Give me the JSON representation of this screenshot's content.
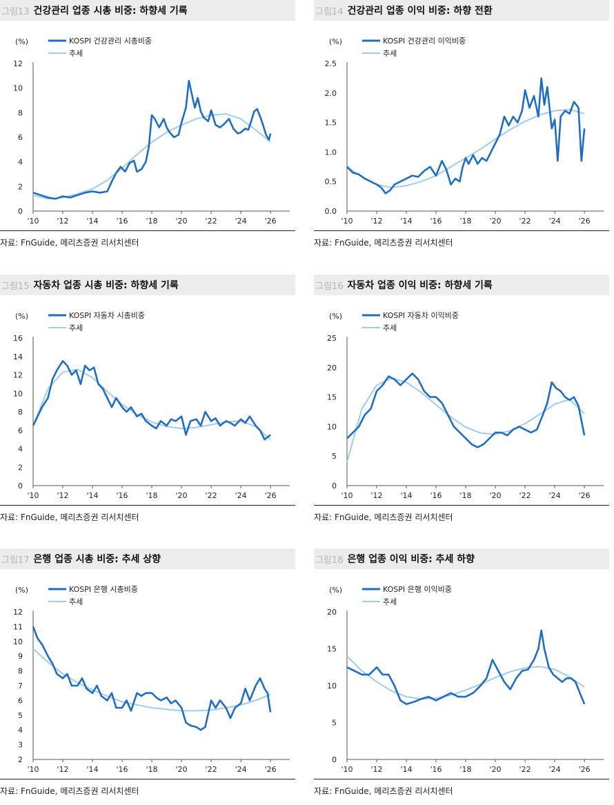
{
  "source_text": "자료: FnGuide, 메리츠증권 리서치센터",
  "colors": {
    "series": "#1f6dc0",
    "trend": "#9fcbef"
  },
  "chart_data": [
    {
      "type": "line",
      "fig_no": "그림13",
      "title": "건강관리 업종 시총 비중: 하향세 기록",
      "unit": "(%)",
      "ylim": [
        0,
        12
      ],
      "yticks": [
        "0",
        "2",
        "4",
        "6",
        "8",
        "10",
        "12"
      ],
      "xlim": [
        2010,
        2026.6
      ],
      "xticks": [
        "'10",
        "'12",
        "'14",
        "'16",
        "'18",
        "'20",
        "'22",
        "'24",
        "'26"
      ],
      "series": [
        {
          "name": "KOSPI 건강관리 시총비중",
          "role": "actual",
          "x": [
            2010,
            2010.5,
            2011,
            2011.5,
            2012,
            2012.5,
            2013,
            2013.5,
            2014,
            2014.5,
            2015,
            2015.3,
            2015.6,
            2015.9,
            2016.2,
            2016.5,
            2016.8,
            2017,
            2017.3,
            2017.6,
            2017.8,
            2018,
            2018.2,
            2018.5,
            2018.8,
            2019,
            2019.2,
            2019.5,
            2019.8,
            2020,
            2020.3,
            2020.5,
            2020.7,
            2020.9,
            2021.1,
            2021.3,
            2021.5,
            2021.8,
            2022,
            2022.3,
            2022.6,
            2022.9,
            2023.2,
            2023.5,
            2023.8,
            2024,
            2024.3,
            2024.5,
            2024.7,
            2024.9,
            2025.1,
            2025.3,
            2025.5,
            2025.7,
            2025.9,
            2026
          ],
          "y": [
            1.5,
            1.3,
            1.1,
            1.0,
            1.2,
            1.1,
            1.3,
            1.5,
            1.6,
            1.5,
            1.6,
            2.4,
            3.1,
            3.6,
            3.2,
            3.9,
            4.1,
            3.2,
            3.4,
            4.0,
            5.2,
            7.8,
            7.5,
            6.8,
            7.5,
            6.8,
            6.4,
            6.0,
            6.2,
            7.2,
            8.4,
            10.6,
            9.5,
            8.4,
            9.2,
            8.1,
            7.6,
            7.3,
            8.2,
            7.0,
            6.8,
            7.1,
            7.5,
            6.7,
            6.3,
            6.4,
            6.7,
            6.6,
            7.3,
            8.1,
            8.3,
            7.7,
            7.0,
            6.2,
            5.8,
            6.3
          ]
        },
        {
          "name": "추세",
          "role": "trend",
          "x": [
            2010,
            2011,
            2012,
            2013,
            2014,
            2015,
            2016,
            2017,
            2018,
            2019,
            2020,
            2021,
            2022,
            2023,
            2024,
            2025,
            2026
          ],
          "y": [
            1.3,
            1.0,
            1.1,
            1.4,
            1.8,
            2.5,
            3.5,
            4.6,
            5.6,
            6.4,
            7.0,
            7.5,
            7.8,
            7.9,
            7.5,
            6.6,
            5.6
          ]
        }
      ]
    },
    {
      "type": "line",
      "fig_no": "그림14",
      "title": "건강관리 업종 이익 비중: 하향 전환",
      "unit": "(%)",
      "ylim": [
        0,
        2.5
      ],
      "yticks": [
        "0.0",
        "0.5",
        "1.0",
        "1.5",
        "2.0",
        "2.5"
      ],
      "xlim": [
        2010,
        2026.6
      ],
      "xticks": [
        "'10",
        "'12",
        "'14",
        "'16",
        "'18",
        "'20",
        "'22",
        "'24",
        "'26"
      ],
      "series": [
        {
          "name": "KOSPI 건강관리 이익비중",
          "role": "actual",
          "x": [
            2010,
            2010.4,
            2010.8,
            2011.2,
            2011.6,
            2012,
            2012.3,
            2012.6,
            2012.9,
            2013.2,
            2013.6,
            2014,
            2014.4,
            2014.8,
            2015.2,
            2015.6,
            2016,
            2016.4,
            2016.7,
            2017,
            2017.3,
            2017.6,
            2017.8,
            2018,
            2018.2,
            2018.5,
            2018.8,
            2019.1,
            2019.4,
            2019.7,
            2020,
            2020.3,
            2020.6,
            2020.9,
            2021.2,
            2021.5,
            2021.8,
            2022,
            2022.3,
            2022.6,
            2022.9,
            2023.1,
            2023.3,
            2023.5,
            2023.8,
            2024,
            2024.2,
            2024.4,
            2024.7,
            2025,
            2025.3,
            2025.6,
            2025.8,
            2026
          ],
          "y": [
            0.75,
            0.65,
            0.62,
            0.55,
            0.5,
            0.45,
            0.4,
            0.3,
            0.35,
            0.45,
            0.5,
            0.55,
            0.6,
            0.58,
            0.68,
            0.75,
            0.6,
            0.85,
            0.7,
            0.45,
            0.55,
            0.5,
            0.75,
            0.9,
            0.8,
            0.95,
            0.8,
            0.9,
            0.85,
            1.0,
            1.15,
            1.3,
            1.6,
            1.45,
            1.6,
            1.5,
            1.7,
            2.05,
            1.75,
            1.95,
            1.6,
            2.25,
            1.8,
            2.1,
            1.4,
            1.55,
            0.85,
            1.6,
            1.7,
            1.65,
            1.85,
            1.75,
            0.85,
            1.4
          ]
        },
        {
          "name": "추세",
          "role": "trend",
          "x": [
            2010,
            2011,
            2012,
            2013,
            2014,
            2015,
            2016,
            2017,
            2018,
            2019,
            2020,
            2021,
            2022,
            2023,
            2024,
            2025,
            2026
          ],
          "y": [
            0.75,
            0.58,
            0.45,
            0.4,
            0.43,
            0.5,
            0.6,
            0.75,
            0.9,
            1.05,
            1.22,
            1.38,
            1.52,
            1.63,
            1.7,
            1.72,
            1.65
          ]
        }
      ]
    },
    {
      "type": "line",
      "fig_no": "그림15",
      "title": "자동차 업종 시총 비중: 하향세 기록",
      "unit": "(%)",
      "ylim": [
        0,
        16
      ],
      "yticks": [
        "0",
        "2",
        "4",
        "6",
        "8",
        "10",
        "12",
        "14",
        "16"
      ],
      "xlim": [
        2010,
        2026.6
      ],
      "xticks": [
        "'10",
        "'12",
        "'14",
        "'16",
        "'18",
        "'20",
        "'22",
        "'24",
        "'26"
      ],
      "series": [
        {
          "name": "KOSPI 자동차 시총비중",
          "role": "actual",
          "x": [
            2010,
            2010.3,
            2010.6,
            2011,
            2011.3,
            2011.6,
            2012,
            2012.3,
            2012.6,
            2012.9,
            2013.2,
            2013.5,
            2013.8,
            2014.1,
            2014.4,
            2014.7,
            2015,
            2015.3,
            2015.6,
            2016,
            2016.3,
            2016.6,
            2017,
            2017.3,
            2017.6,
            2018,
            2018.3,
            2018.6,
            2019,
            2019.3,
            2019.6,
            2020,
            2020.3,
            2020.6,
            2021,
            2021.3,
            2021.6,
            2022,
            2022.3,
            2022.6,
            2023,
            2023.3,
            2023.6,
            2024,
            2024.3,
            2024.6,
            2025,
            2025.3,
            2025.6,
            2026
          ],
          "y": [
            6.5,
            7.5,
            8.5,
            9.5,
            11.5,
            12.5,
            13.5,
            13,
            12,
            12.5,
            11,
            13,
            12.5,
            12.8,
            11,
            10.5,
            9.5,
            8.5,
            9.5,
            8.5,
            8,
            8.5,
            7.5,
            7.8,
            7,
            6.5,
            6.2,
            7,
            6.5,
            7.2,
            7,
            7.5,
            5.5,
            7,
            7.2,
            6.5,
            8,
            7,
            7.3,
            6.5,
            7,
            6.8,
            6.5,
            7.2,
            6.8,
            7.5,
            6.5,
            6,
            5,
            5.5
          ]
        },
        {
          "name": "추세",
          "role": "trend",
          "x": [
            2010,
            2011,
            2012,
            2013,
            2014,
            2015,
            2016,
            2017,
            2018,
            2019,
            2020,
            2021,
            2022,
            2023,
            2024,
            2025,
            2026
          ],
          "y": [
            6.5,
            10.5,
            12.3,
            12.6,
            11.7,
            10.2,
            8.8,
            7.7,
            6.9,
            6.4,
            6.2,
            6.3,
            6.6,
            6.9,
            7.0,
            6.4,
            5.0
          ]
        }
      ]
    },
    {
      "type": "line",
      "fig_no": "그림16",
      "title": "자동차 업종 이익 비중: 하향세 기록",
      "unit": "(%)",
      "ylim": [
        0,
        25
      ],
      "yticks": [
        "0",
        "5",
        "10",
        "15",
        "20",
        "25"
      ],
      "xlim": [
        2010,
        2026.6
      ],
      "xticks": [
        "'10",
        "'12",
        "'14",
        "'16",
        "'18",
        "'20",
        "'22",
        "'24",
        "'26"
      ],
      "series": [
        {
          "name": "KOSPI 자동차 이익비중",
          "role": "actual",
          "x": [
            2010,
            2010.4,
            2010.8,
            2011.2,
            2011.6,
            2012,
            2012.4,
            2012.8,
            2013.2,
            2013.6,
            2014,
            2014.4,
            2014.8,
            2015.2,
            2015.6,
            2016,
            2016.4,
            2016.8,
            2017.2,
            2017.6,
            2018,
            2018.4,
            2018.8,
            2019.2,
            2019.6,
            2020,
            2020.4,
            2020.8,
            2021.2,
            2021.6,
            2022,
            2022.4,
            2022.8,
            2023.2,
            2023.5,
            2023.8,
            2024.1,
            2024.4,
            2024.7,
            2025,
            2025.3,
            2025.6,
            2025.8,
            2026
          ],
          "y": [
            8,
            9,
            10,
            12,
            13,
            16,
            17,
            18.5,
            18,
            17,
            18,
            19,
            18,
            16,
            15,
            15,
            14,
            12,
            10,
            9,
            8,
            7,
            6.5,
            7,
            8,
            9,
            9,
            8.5,
            9.5,
            10,
            9.5,
            9,
            9.5,
            12,
            14,
            17.5,
            16.5,
            16,
            15,
            14.5,
            15,
            13.5,
            11,
            8.5
          ]
        },
        {
          "name": "추세",
          "role": "trend",
          "x": [
            2010,
            2011,
            2012,
            2013,
            2014,
            2015,
            2016,
            2017,
            2018,
            2019,
            2020,
            2021,
            2022,
            2023,
            2024,
            2025,
            2026
          ],
          "y": [
            4,
            13,
            17,
            18.2,
            17.5,
            15.8,
            13.7,
            11.6,
            9.9,
            8.9,
            8.7,
            9.3,
            10.5,
            12.1,
            13.8,
            14.6,
            12.2
          ]
        }
      ]
    },
    {
      "type": "line",
      "fig_no": "그림17",
      "title": "은행 업종 시총 비중: 추세 상향",
      "unit": "(%)",
      "ylim": [
        2,
        12
      ],
      "yticks": [
        "2",
        "3",
        "4",
        "5",
        "6",
        "7",
        "8",
        "9",
        "10",
        "11",
        "12"
      ],
      "xlim": [
        2010,
        2026.6
      ],
      "xticks": [
        "'10",
        "'12",
        "'14",
        "'16",
        "'18",
        "'20",
        "'22",
        "'24",
        "'26"
      ],
      "series": [
        {
          "name": "KOSPI 은행 시총비중",
          "role": "actual",
          "x": [
            2010,
            2010.3,
            2010.6,
            2011,
            2011.3,
            2011.6,
            2012,
            2012.3,
            2012.6,
            2013,
            2013.3,
            2013.6,
            2014,
            2014.3,
            2014.6,
            2015,
            2015.3,
            2015.6,
            2016,
            2016.3,
            2016.6,
            2017,
            2017.3,
            2017.6,
            2018,
            2018.3,
            2018.6,
            2019,
            2019.3,
            2019.6,
            2020,
            2020.3,
            2020.6,
            2021,
            2021.3,
            2021.6,
            2022,
            2022.3,
            2022.6,
            2023,
            2023.3,
            2023.6,
            2024,
            2024.3,
            2024.6,
            2025,
            2025.3,
            2025.6,
            2025.8,
            2026
          ],
          "y": [
            11,
            10.2,
            9.8,
            9,
            8.5,
            7.8,
            7.5,
            7.8,
            7,
            7,
            7.5,
            6.8,
            6.5,
            7,
            6.3,
            6,
            6.5,
            5.5,
            5.5,
            6,
            5.3,
            6.5,
            6.3,
            6.5,
            6.5,
            6.2,
            6,
            6.2,
            5.8,
            6,
            5.5,
            4.5,
            4.3,
            4.2,
            4,
            4.2,
            6,
            5.5,
            6,
            5.5,
            4.8,
            5.5,
            5.8,
            6.8,
            6,
            7,
            7.5,
            6.8,
            6.5,
            5.2
          ]
        },
        {
          "name": "추세",
          "role": "trend",
          "x": [
            2010,
            2011,
            2012,
            2013,
            2014,
            2015,
            2016,
            2017,
            2018,
            2019,
            2020,
            2021,
            2022,
            2023,
            2024,
            2025,
            2026
          ],
          "y": [
            9.5,
            8.6,
            7.8,
            7.2,
            6.7,
            6.3,
            5.9,
            5.7,
            5.5,
            5.4,
            5.3,
            5.3,
            5.35,
            5.5,
            5.7,
            6.0,
            6.4
          ]
        }
      ]
    },
    {
      "type": "line",
      "fig_no": "그림18",
      "title": "은행 업종 이익 비중: 추세 하향",
      "unit": "(%)",
      "ylim": [
        0,
        20
      ],
      "yticks": [
        "0",
        "5",
        "10",
        "15",
        "20"
      ],
      "xlim": [
        2010,
        2026.6
      ],
      "xticks": [
        "'10",
        "'12",
        "'14",
        "'16",
        "'18",
        "'20",
        "'22",
        "'24",
        "'26"
      ],
      "series": [
        {
          "name": "KOSPI 은행 이익비중",
          "role": "actual",
          "x": [
            2010,
            2010.5,
            2011,
            2011.5,
            2012,
            2012.4,
            2012.8,
            2013.2,
            2013.6,
            2014,
            2014.5,
            2015,
            2015.5,
            2016,
            2016.5,
            2017,
            2017.5,
            2018,
            2018.5,
            2019,
            2019.4,
            2019.8,
            2020.2,
            2020.6,
            2021,
            2021.4,
            2021.8,
            2022.2,
            2022.6,
            2022.9,
            2023.1,
            2023.3,
            2023.6,
            2023.9,
            2024.2,
            2024.5,
            2024.8,
            2025.1,
            2025.4,
            2025.7,
            2026
          ],
          "y": [
            12.5,
            12,
            11.5,
            11.5,
            12.5,
            11.5,
            11.5,
            10,
            8,
            7.5,
            7.8,
            8.2,
            8.5,
            8,
            8.5,
            9,
            8.5,
            8.5,
            9,
            10,
            11,
            13.5,
            12,
            10.5,
            9.5,
            11,
            12,
            12.2,
            13.5,
            15,
            17.5,
            15,
            12.5,
            11.5,
            11,
            10.5,
            11,
            11,
            10.5,
            9,
            7.5
          ]
        },
        {
          "name": "추세",
          "role": "trend",
          "x": [
            2010,
            2011,
            2012,
            2013,
            2014,
            2015,
            2016,
            2017,
            2018,
            2019,
            2020,
            2021,
            2022,
            2023,
            2024,
            2025,
            2026
          ],
          "y": [
            14,
            12,
            10.5,
            9.3,
            8.5,
            8.2,
            8.3,
            8.7,
            9.4,
            10.2,
            11.1,
            11.9,
            12.4,
            12.6,
            12.2,
            11.2,
            9.8
          ]
        }
      ]
    }
  ]
}
